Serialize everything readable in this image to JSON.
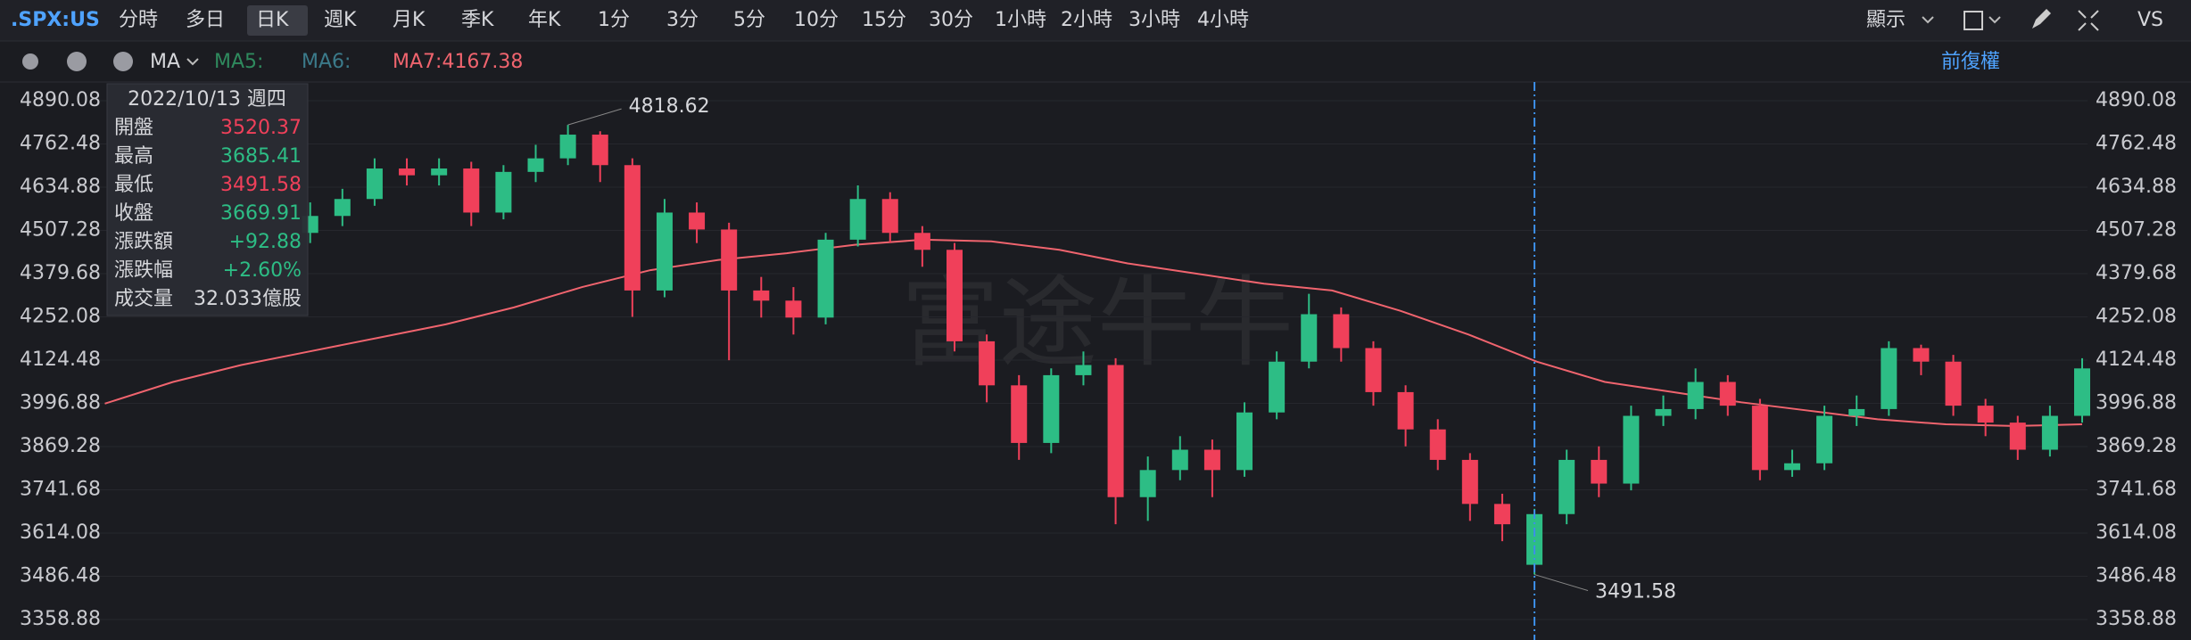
{
  "toolbar": {
    "symbol": ".SPX:US",
    "tabs": [
      "分時",
      "多日",
      "日K",
      "週K",
      "月K",
      "季K",
      "年K",
      "1分",
      "3分",
      "5分",
      "10分",
      "15分",
      "30分",
      "1小時",
      "2小時",
      "3小時",
      "4小時"
    ],
    "display": "顯示",
    "compare": "VS"
  },
  "indicator_bar": {
    "indicator": "MA",
    "ma_labels": [
      "MA5:",
      "MA6:",
      "MA7:4167.38"
    ],
    "adjust": "前復權"
  },
  "tooltip": {
    "date": "2022/10/13 週四",
    "rows": [
      "開盤",
      "最高",
      "最低",
      "收盤",
      "漲跌額",
      "漲跌幅",
      "成交量"
    ],
    "change": "+92.88",
    "change_pct": "+2.60%",
    "volume": "32.033億股"
  },
  "chart_data": {
    "type": "candlestick",
    "watermark": "富途牛牛",
    "open": [
      4500,
      4550,
      4600,
      4690,
      4670,
      4690,
      4560,
      4680,
      4720,
      4790,
      4700,
      4330,
      4560,
      4510,
      4330,
      4300,
      4250,
      4480,
      4600,
      4500,
      4450,
      4180,
      4050,
      3880,
      4080,
      4110,
      3720,
      3800,
      3860,
      3800,
      3970,
      4120,
      4260,
      4160,
      4030,
      3920,
      3830,
      3700,
      3520.37,
      3670,
      3830,
      3760,
      3960,
      3980,
      4060,
      3990,
      3800,
      3820,
      3960,
      3980,
      4160,
      4120,
      3990,
      3940,
      3860,
      3960
    ],
    "high": [
      4590,
      4630,
      4720,
      4720,
      4720,
      4710,
      4700,
      4760,
      4818.62,
      4800,
      4720,
      4600,
      4590,
      4530,
      4370,
      4340,
      4500,
      4640,
      4620,
      4520,
      4470,
      4200,
      4080,
      4100,
      4150,
      4130,
      3840,
      3900,
      3890,
      4000,
      4150,
      4320,
      4280,
      4180,
      4050,
      3950,
      3850,
      3730,
      3685.41,
      3860,
      3870,
      3990,
      4020,
      4100,
      4080,
      4010,
      3860,
      3990,
      4020,
      4180,
      4170,
      4140,
      4010,
      3960,
      3990,
      4130
    ],
    "low": [
      4470,
      4520,
      4580,
      4640,
      4640,
      4520,
      4540,
      4650,
      4700,
      4650,
      4252,
      4310,
      4470,
      4124,
      4250,
      4200,
      4230,
      4460,
      4470,
      4400,
      4150,
      4000,
      3830,
      3850,
      4050,
      3640,
      3650,
      3770,
      3720,
      3780,
      3950,
      4100,
      4120,
      3990,
      3870,
      3800,
      3650,
      3590,
      3491.58,
      3640,
      3720,
      3740,
      3930,
      3950,
      3960,
      3770,
      3780,
      3800,
      3930,
      3960,
      4080,
      3960,
      3900,
      3830,
      3840,
      3940
    ],
    "close": [
      4550,
      4600,
      4690,
      4670,
      4690,
      4560,
      4680,
      4720,
      4790,
      4700,
      4330,
      4560,
      4510,
      4330,
      4300,
      4250,
      4480,
      4600,
      4500,
      4450,
      4180,
      4050,
      3880,
      4080,
      4110,
      3720,
      3800,
      3860,
      3800,
      3970,
      4120,
      4260,
      4160,
      4030,
      3920,
      3830,
      3700,
      3640,
      3669.91,
      3830,
      3760,
      3960,
      3980,
      4060,
      3990,
      3800,
      3820,
      3960,
      3980,
      4160,
      4120,
      3990,
      3940,
      3860,
      3960,
      4100
    ],
    "up_color": "#2dbd85",
    "down_color": "#f0405a",
    "ma_values": [
      3996,
      4060,
      4110,
      4150,
      4190,
      4230,
      4280,
      4340,
      4390,
      4420,
      4440,
      4465,
      4480,
      4475,
      4450,
      4410,
      4380,
      4350,
      4330,
      4270,
      4200,
      4120,
      4060,
      4030,
      4000,
      3975,
      3950,
      3935,
      3930,
      3935
    ],
    "ma_color": "#f0646e",
    "ylim": [
      3358.88,
      4890.08
    ],
    "yticks": [
      4890.08,
      4762.48,
      4634.88,
      4507.28,
      4379.68,
      4252.08,
      4124.48,
      3996.88,
      3869.28,
      3741.68,
      3614.08,
      3486.48,
      3358.88
    ],
    "grid": true
  }
}
